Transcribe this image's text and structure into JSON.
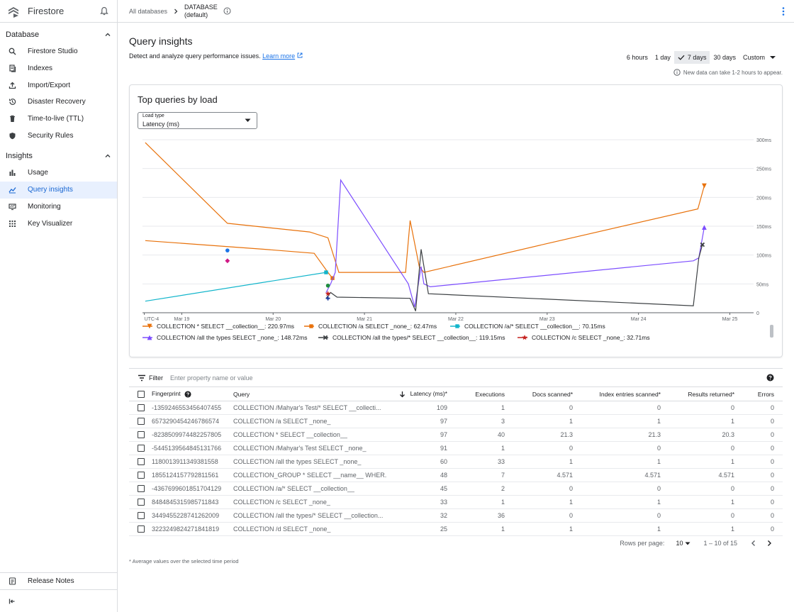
{
  "app": {
    "name": "Firestore"
  },
  "breadcrumb": {
    "root": "All databases",
    "db_line1": "DATABASE",
    "db_line2": "(default)"
  },
  "sidebar": {
    "database_header": "Database",
    "database_items": [
      {
        "label": "Firestore Studio",
        "icon": "search-icon"
      },
      {
        "label": "Indexes",
        "icon": "indexes-icon"
      },
      {
        "label": "Import/Export",
        "icon": "upload-icon"
      },
      {
        "label": "Disaster Recovery",
        "icon": "history-icon"
      },
      {
        "label": "Time-to-live (TTL)",
        "icon": "trash-icon"
      },
      {
        "label": "Security Rules",
        "icon": "shield-icon"
      }
    ],
    "insights_header": "Insights",
    "insights_items": [
      {
        "label": "Usage",
        "icon": "bar-chart-icon"
      },
      {
        "label": "Query insights",
        "icon": "line-chart-icon",
        "active": true
      },
      {
        "label": "Monitoring",
        "icon": "monitor-icon"
      },
      {
        "label": "Key Visualizer",
        "icon": "grid-icon"
      }
    ],
    "release_notes": "Release Notes"
  },
  "header": {
    "title": "Query insights",
    "subtitle": "Detect and analyze query performance issues.",
    "learn_more": "Learn more",
    "ranges": [
      "6 hours",
      "1 day",
      "7 days",
      "30 days"
    ],
    "selected_range": "7 days",
    "custom": "Custom",
    "note": "New data can take 1-2 hours to appear."
  },
  "chart_card": {
    "title": "Top queries by load",
    "load_type_label": "Load type",
    "load_type_value": "Latency (ms)"
  },
  "chart_data": {
    "type": "line",
    "title": "Top queries by load",
    "ylabel": "Latency (ms)",
    "ylim": [
      0,
      300
    ],
    "y_ticks": [
      "0",
      "50ms",
      "100ms",
      "150ms",
      "200ms",
      "250ms",
      "300ms"
    ],
    "y_tick_values": [
      0,
      50,
      100,
      150,
      200,
      250,
      300
    ],
    "x_ticks": [
      "UTC-4",
      "Mar 19",
      "Mar 20",
      "Mar 21",
      "Mar 22",
      "Mar 23",
      "Mar 24",
      "Mar 25"
    ],
    "x_tick_values": [
      18.59,
      19.0,
      20.0,
      21.0,
      22.0,
      23.0,
      24.0,
      25.0
    ],
    "xlim": [
      18.57,
      25.26
    ],
    "series": [
      {
        "name": "COLLECTION * SELECT __collection__: 220.97ms",
        "color": "#e8710a",
        "marker": "triangle-down",
        "x": [
          18.6,
          19.5,
          20.4,
          20.6,
          20.72,
          21.45,
          21.5,
          21.6,
          21.65,
          23.0,
          24.65,
          24.72
        ],
        "y": [
          295,
          155,
          140,
          130,
          70,
          70,
          160,
          80,
          70,
          120,
          180,
          220
        ]
      },
      {
        "name": "COLLECTION /a SELECT _none_: 62.47ms",
        "color": "#e8710a",
        "marker": "square",
        "x": [
          18.6,
          19.9,
          20.45,
          20.6,
          20.65
        ],
        "y": [
          125,
          110,
          103,
          70,
          60
        ]
      },
      {
        "name": "COLLECTION /a/* SELECT __collection__: 70.15ms",
        "color": "#12b5cb",
        "marker": "square",
        "x": [
          18.6,
          20.58
        ],
        "y": [
          20,
          70
        ]
      },
      {
        "name": "COLLECTION /all the types SELECT _none_: 148.72ms",
        "color": "#7c4dff",
        "marker": "triangle-up",
        "x": [
          20.58,
          20.63,
          20.68,
          20.74,
          21.48,
          21.55,
          21.62,
          21.65,
          21.72,
          24.6,
          24.66,
          24.72
        ],
        "y": [
          35,
          50,
          70,
          230,
          50,
          10,
          80,
          50,
          45,
          90,
          95,
          148
        ]
      },
      {
        "name": "COLLECTION /all the types/* SELECT __collection__: 119.15ms",
        "color": "#3c4043",
        "marker": "x",
        "x": [
          20.58,
          20.63,
          20.7,
          21.5,
          21.56,
          21.62,
          21.7,
          24.6,
          24.66,
          24.7
        ],
        "y": [
          25,
          35,
          27,
          25,
          3,
          110,
          33,
          12,
          95,
          118
        ]
      },
      {
        "name": "COLLECTION /c SELECT _none_: 32.71ms",
        "color": "#c5221f",
        "marker": "star",
        "x": [
          20.6
        ],
        "y": [
          33
        ]
      }
    ],
    "extra_points": [
      {
        "x": 19.5,
        "y": 108,
        "color": "#1a73e8",
        "marker": "circle"
      },
      {
        "x": 19.5,
        "y": 90,
        "color": "#d01884",
        "marker": "diamond"
      },
      {
        "x": 20.6,
        "y": 47,
        "color": "#1e8e3e",
        "marker": "circle"
      },
      {
        "x": 20.6,
        "y": 25,
        "color": "#1a3a9e",
        "marker": "plus"
      }
    ]
  },
  "filter": {
    "label": "Filter",
    "placeholder": "Enter property name or value"
  },
  "table": {
    "columns": [
      "Fingerprint",
      "Query",
      "Latency (ms)*",
      "Executions",
      "Docs scanned*",
      "Index entries scanned*",
      "Results returned*",
      "Errors"
    ],
    "rows": [
      [
        "-1359246553456407455",
        "COLLECTION /Mahyar's Test/* SELECT __collecti...",
        "109",
        "1",
        "0",
        "0",
        "0",
        "0"
      ],
      [
        "6573290454246786574",
        "COLLECTION /a SELECT _none_",
        "97",
        "3",
        "1",
        "1",
        "1",
        "0"
      ],
      [
        "-8238509974482257805",
        "COLLECTION * SELECT __collection__",
        "97",
        "40",
        "21.3",
        "21.3",
        "20.3",
        "0"
      ],
      [
        "-5445139564845131766",
        "COLLECTION /Mahyar's Test SELECT _none_",
        "91",
        "1",
        "0",
        "0",
        "0",
        "0"
      ],
      [
        "1180013911349381558",
        "COLLECTION /all the types SELECT _none_",
        "60",
        "33",
        "1",
        "1",
        "1",
        "0"
      ],
      [
        "1855124157792811561",
        "COLLECTION_GROUP * SELECT __name__ WHER...",
        "48",
        "7",
        "4.571",
        "4.571",
        "4.571",
        "0"
      ],
      [
        "-4367699601851704129",
        "COLLECTION /a/* SELECT __collection__",
        "45",
        "2",
        "0",
        "0",
        "0",
        "0"
      ],
      [
        "8484845315985711843",
        "COLLECTION /c SELECT _none_",
        "33",
        "1",
        "1",
        "1",
        "1",
        "0"
      ],
      [
        "3449455228741262009",
        "COLLECTION /all the types/* SELECT __collection...",
        "32",
        "36",
        "0",
        "0",
        "0",
        "0"
      ],
      [
        "3223249824271841819",
        "COLLECTION /d SELECT _none_",
        "25",
        "1",
        "1",
        "1",
        "1",
        "0"
      ]
    ]
  },
  "pagination": {
    "rows_per_page_label": "Rows per page:",
    "rows_per_page": "10",
    "range": "1 – 10 of 15"
  },
  "footnote": "* Average values over the selected time period"
}
